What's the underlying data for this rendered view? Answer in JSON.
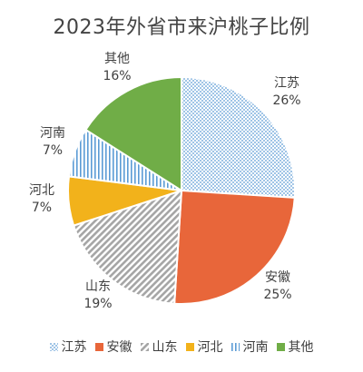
{
  "chart_data": {
    "type": "pie",
    "title": "2023年外省市来沪桃子比例",
    "legend_position": "bottom",
    "slices": [
      {
        "name": "江苏",
        "value": 26,
        "label": "26%",
        "color": "#5B9BD5",
        "pattern": "dots"
      },
      {
        "name": "安徽",
        "value": 25,
        "label": "25%",
        "color": "#E8663A",
        "pattern": "solid"
      },
      {
        "name": "山东",
        "value": 19,
        "label": "19%",
        "color": "#A5A5A5",
        "pattern": "diagonal"
      },
      {
        "name": "河北",
        "value": 7,
        "label": "7%",
        "color": "#F2B21B",
        "pattern": "solid"
      },
      {
        "name": "河南",
        "value": 7,
        "label": "7%",
        "color": "#5B9BD5",
        "pattern": "vertical"
      },
      {
        "name": "其他",
        "value": 16,
        "label": "16%",
        "color": "#70AD47",
        "pattern": "solid"
      }
    ]
  }
}
